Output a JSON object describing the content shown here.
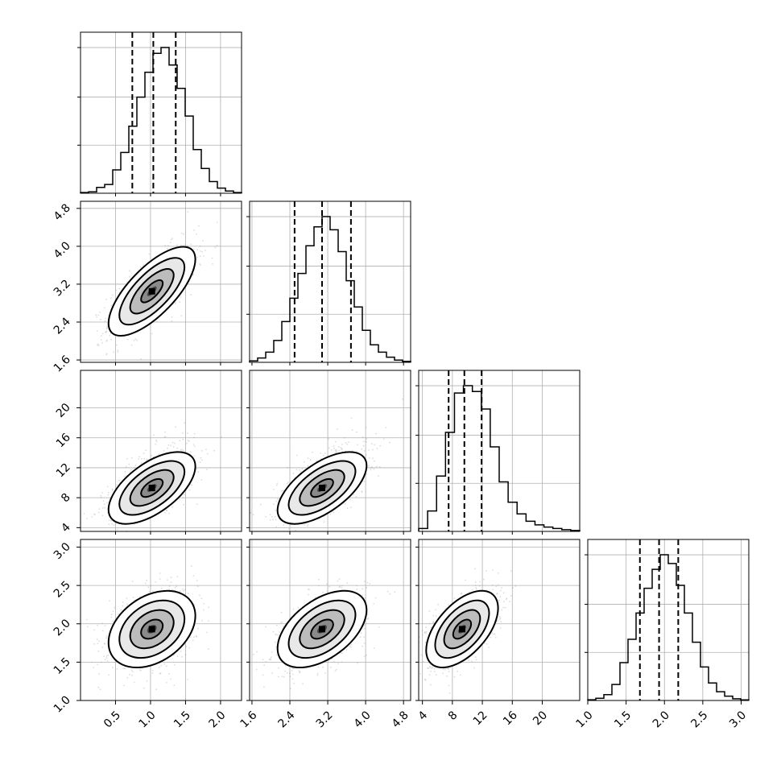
{
  "chart_data": {
    "type": "corner",
    "grid": true,
    "parameters": [
      {
        "range": [
          0.0,
          2.3
        ],
        "ticks": [
          0.5,
          1.0,
          1.5,
          2.0
        ],
        "tick_labels": [
          "0.5",
          "1.0",
          "1.5",
          "2.0"
        ],
        "quantiles": [
          0.74,
          1.04,
          1.36
        ],
        "hist_edges_range": [
          0.0,
          2.3
        ],
        "hist_counts": [
          0.005,
          0.01,
          0.04,
          0.06,
          0.16,
          0.28,
          0.46,
          0.66,
          0.83,
          0.96,
          1.0,
          0.88,
          0.72,
          0.53,
          0.3,
          0.17,
          0.08,
          0.035,
          0.015,
          0.005
        ]
      },
      {
        "range": [
          1.55,
          4.95
        ],
        "ticks": [
          1.6,
          2.4,
          3.2,
          4.0,
          4.8
        ],
        "tick_labels": [
          "1.6",
          "2.4",
          "3.2",
          "4.0",
          "4.8"
        ],
        "quantiles": [
          2.5,
          3.08,
          3.69
        ],
        "hist_edges_range": [
          1.55,
          4.95
        ],
        "hist_counts": [
          0.01,
          0.03,
          0.07,
          0.15,
          0.28,
          0.44,
          0.61,
          0.8,
          0.93,
          1.0,
          0.91,
          0.76,
          0.56,
          0.38,
          0.22,
          0.12,
          0.07,
          0.035,
          0.015,
          0.006
        ]
      },
      {
        "range": [
          3.5,
          25.0
        ],
        "ticks": [
          4,
          8,
          12,
          16,
          20
        ],
        "tick_labels": [
          "4",
          "8",
          "12",
          "16",
          "20"
        ],
        "quantiles": [
          7.5,
          9.6,
          11.9
        ],
        "hist_edges_range": [
          3.5,
          25.0
        ],
        "hist_counts": [
          0.02,
          0.14,
          0.38,
          0.68,
          0.95,
          1.0,
          0.96,
          0.84,
          0.58,
          0.34,
          0.2,
          0.12,
          0.07,
          0.045,
          0.03,
          0.02,
          0.012,
          0.006
        ]
      },
      {
        "range": [
          1.0,
          3.1
        ],
        "ticks": [
          1.0,
          1.5,
          2.0,
          2.5,
          3.0
        ],
        "tick_labels": [
          "1.0",
          "1.5",
          "2.0",
          "2.5",
          "3.0"
        ],
        "quantiles": [
          1.68,
          1.93,
          2.18
        ],
        "hist_edges_range": [
          1.0,
          3.1
        ],
        "hist_counts": [
          0.005,
          0.015,
          0.04,
          0.11,
          0.26,
          0.42,
          0.6,
          0.77,
          0.9,
          1.0,
          0.94,
          0.79,
          0.6,
          0.4,
          0.23,
          0.12,
          0.06,
          0.03,
          0.012,
          0.004
        ]
      }
    ],
    "pairs": [
      {
        "row": 1,
        "col": 0,
        "center": [
          1.02,
          3.05
        ],
        "sd": [
          0.31,
          0.47
        ],
        "corr": 0.72
      },
      {
        "row": 2,
        "col": 0,
        "center": [
          1.02,
          9.3
        ],
        "sd": [
          0.31,
          2.4
        ],
        "corr": 0.6
      },
      {
        "row": 2,
        "col": 1,
        "center": [
          3.08,
          9.3
        ],
        "sd": [
          0.47,
          2.4
        ],
        "corr": 0.62
      },
      {
        "row": 3,
        "col": 0,
        "center": [
          1.02,
          1.93
        ],
        "sd": [
          0.31,
          0.25
        ],
        "corr": 0.35
      },
      {
        "row": 3,
        "col": 1,
        "center": [
          3.08,
          1.93
        ],
        "sd": [
          0.47,
          0.25
        ],
        "corr": 0.5
      },
      {
        "row": 3,
        "col": 2,
        "center": [
          9.3,
          1.93
        ],
        "sd": [
          2.4,
          0.25
        ],
        "corr": 0.55
      }
    ],
    "contour_levels_sigma": [
      0.5,
      1.0,
      1.5,
      2.0
    ]
  }
}
